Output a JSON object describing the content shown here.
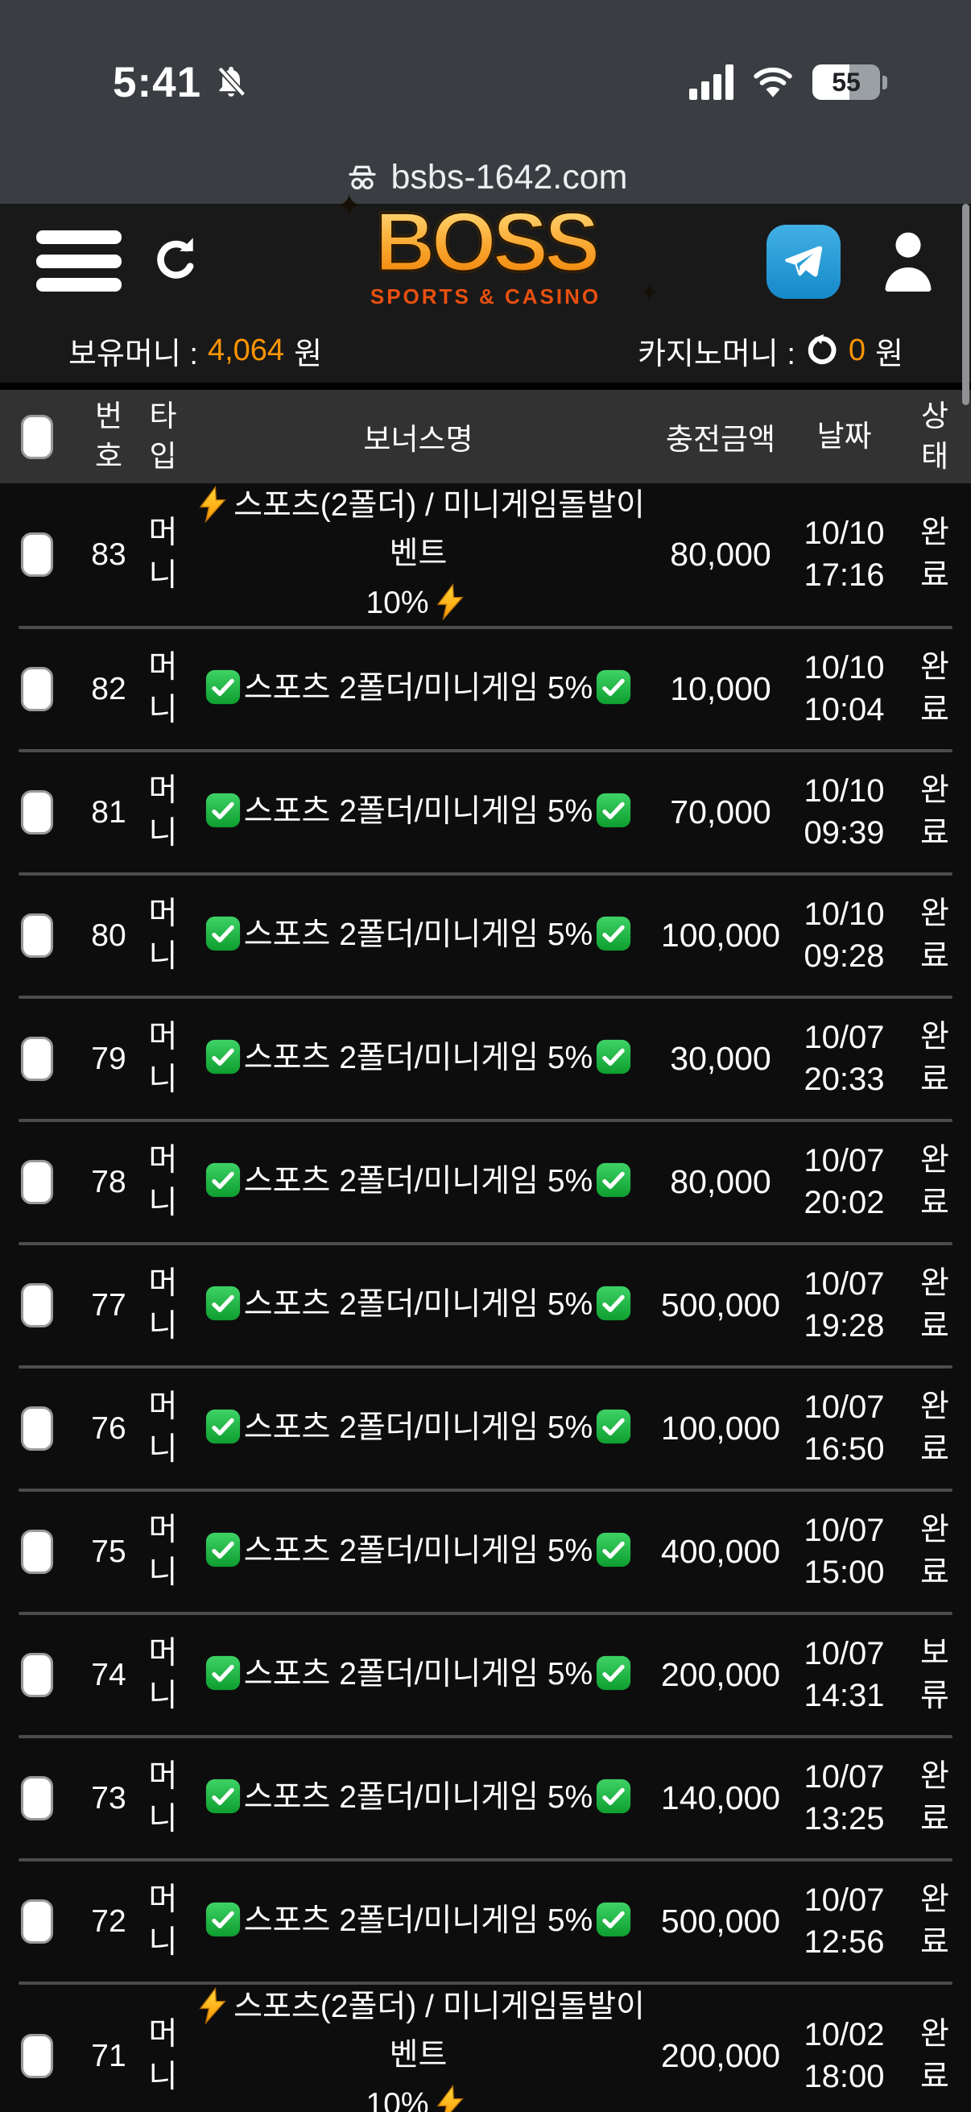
{
  "status_bar": {
    "time": "5:41",
    "battery_level": "55"
  },
  "browser": {
    "url": "bsbs-1642.com"
  },
  "header": {
    "logo_text": "BOSS",
    "logo_subtitle": "SPORTS & CASINO"
  },
  "wallet": {
    "balance_label": "보유머니 :",
    "balance_value": "4,064",
    "balance_unit": "원",
    "casino_label": "카지노머니 :",
    "casino_value": "0",
    "casino_unit": "원"
  },
  "table": {
    "headers": {
      "no": "번호",
      "type": "타입",
      "bonus": "보너스명",
      "amount": "충전금액",
      "date": "날짜",
      "status": "상태"
    },
    "bonus_texts": {
      "check": [
        "스포츠 2폴더/미니게임 5%"
      ],
      "bolt": [
        "스포츠(2폴더) / 미니게임돌발이벤트",
        "10%"
      ]
    },
    "rows": [
      {
        "no": "83",
        "type": "머니",
        "bonus": "bolt",
        "amount": "80,000",
        "date": "10/10",
        "time": "17:16",
        "status": "완료"
      },
      {
        "no": "82",
        "type": "머니",
        "bonus": "check",
        "amount": "10,000",
        "date": "10/10",
        "time": "10:04",
        "status": "완료"
      },
      {
        "no": "81",
        "type": "머니",
        "bonus": "check",
        "amount": "70,000",
        "date": "10/10",
        "time": "09:39",
        "status": "완료"
      },
      {
        "no": "80",
        "type": "머니",
        "bonus": "check",
        "amount": "100,000",
        "date": "10/10",
        "time": "09:28",
        "status": "완료"
      },
      {
        "no": "79",
        "type": "머니",
        "bonus": "check",
        "amount": "30,000",
        "date": "10/07",
        "time": "20:33",
        "status": "완료"
      },
      {
        "no": "78",
        "type": "머니",
        "bonus": "check",
        "amount": "80,000",
        "date": "10/07",
        "time": "20:02",
        "status": "완료"
      },
      {
        "no": "77",
        "type": "머니",
        "bonus": "check",
        "amount": "500,000",
        "date": "10/07",
        "time": "19:28",
        "status": "완료"
      },
      {
        "no": "76",
        "type": "머니",
        "bonus": "check",
        "amount": "100,000",
        "date": "10/07",
        "time": "16:50",
        "status": "완료"
      },
      {
        "no": "75",
        "type": "머니",
        "bonus": "check",
        "amount": "400,000",
        "date": "10/07",
        "time": "15:00",
        "status": "완료"
      },
      {
        "no": "74",
        "type": "머니",
        "bonus": "check",
        "amount": "200,000",
        "date": "10/07",
        "time": "14:31",
        "status": "보류"
      },
      {
        "no": "73",
        "type": "머니",
        "bonus": "check",
        "amount": "140,000",
        "date": "10/07",
        "time": "13:25",
        "status": "완료"
      },
      {
        "no": "72",
        "type": "머니",
        "bonus": "check",
        "amount": "500,000",
        "date": "10/07",
        "time": "12:56",
        "status": "완료"
      },
      {
        "no": "71",
        "type": "머니",
        "bonus": "bolt",
        "amount": "200,000",
        "date": "10/02",
        "time": "18:00",
        "status": "완료"
      }
    ]
  },
  "icons": [
    "notifications-off-icon",
    "signal-icon",
    "wifi-icon",
    "battery-icon",
    "incognito-icon",
    "menu-icon",
    "refresh-icon",
    "telegram-icon",
    "user-icon",
    "casino-refresh-icon",
    "check-emoji-icon",
    "lightning-emoji-icon"
  ],
  "colors": {
    "accent_orange": "#ff9500",
    "logo_subtitle_red": "#e8500f",
    "telegram_blue": "#2d9fd8",
    "check_green": "#1faa3c",
    "bolt_yellow": "#ffb300",
    "status_bar_bg": "#3a3d41",
    "header_bg": "#191919",
    "table_header_bg": "#323232",
    "row_bg": "#0d0d0d",
    "divider": "#4c4c4c"
  }
}
